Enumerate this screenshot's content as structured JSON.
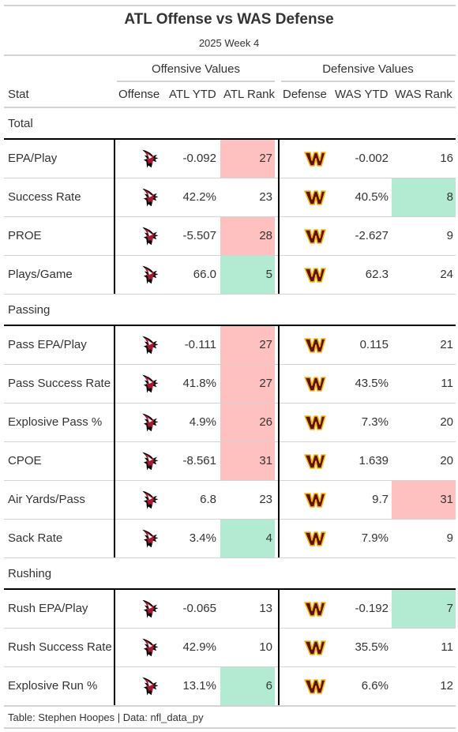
{
  "title": "ATL Offense vs WAS Defense",
  "subtitle": "2025 Week 4",
  "spanners": {
    "offense": "Offensive Values",
    "defense": "Defensive Values"
  },
  "columns": {
    "stat": "Stat",
    "offense": "Offense",
    "atl_ytd": "ATL YTD",
    "atl_rank": "ATL Rank",
    "defense": "Defense",
    "was_ytd": "WAS YTD",
    "was_rank": "WAS Rank"
  },
  "colors": {
    "bad": "#ffc0c0",
    "good": "#b2ebd2",
    "falcons_red": "#a71930",
    "commanders_burgundy": "#5a1414",
    "commanders_gold": "#ffb612"
  },
  "icons": {
    "offense": "falcons-logo-icon",
    "defense": "commanders-logo-icon"
  },
  "groups": [
    {
      "label": "Total",
      "rows": [
        {
          "stat": "EPA/Play",
          "atl_ytd": "-0.092",
          "atl_rank": "27",
          "atl_rank_shade": "bad",
          "was_ytd": "-0.002",
          "was_rank": "16",
          "was_rank_shade": ""
        },
        {
          "stat": "Success Rate",
          "atl_ytd": "42.2%",
          "atl_rank": "23",
          "atl_rank_shade": "",
          "was_ytd": "40.5%",
          "was_rank": "8",
          "was_rank_shade": "good"
        },
        {
          "stat": "PROE",
          "atl_ytd": "-5.507",
          "atl_rank": "28",
          "atl_rank_shade": "bad",
          "was_ytd": "-2.627",
          "was_rank": "9",
          "was_rank_shade": ""
        },
        {
          "stat": "Plays/Game",
          "atl_ytd": "66.0",
          "atl_rank": "5",
          "atl_rank_shade": "good",
          "was_ytd": "62.3",
          "was_rank": "24",
          "was_rank_shade": ""
        }
      ]
    },
    {
      "label": "Passing",
      "rows": [
        {
          "stat": "Pass EPA/Play",
          "atl_ytd": "-0.111",
          "atl_rank": "27",
          "atl_rank_shade": "bad",
          "was_ytd": "0.115",
          "was_rank": "21",
          "was_rank_shade": ""
        },
        {
          "stat": "Pass Success Rate",
          "atl_ytd": "41.8%",
          "atl_rank": "27",
          "atl_rank_shade": "bad",
          "was_ytd": "43.5%",
          "was_rank": "11",
          "was_rank_shade": ""
        },
        {
          "stat": "Explosive Pass %",
          "atl_ytd": "4.9%",
          "atl_rank": "26",
          "atl_rank_shade": "bad",
          "was_ytd": "7.3%",
          "was_rank": "20",
          "was_rank_shade": ""
        },
        {
          "stat": "CPOE",
          "atl_ytd": "-8.561",
          "atl_rank": "31",
          "atl_rank_shade": "bad",
          "was_ytd": "1.639",
          "was_rank": "20",
          "was_rank_shade": ""
        },
        {
          "stat": "Air Yards/Pass",
          "atl_ytd": "6.8",
          "atl_rank": "23",
          "atl_rank_shade": "",
          "was_ytd": "9.7",
          "was_rank": "31",
          "was_rank_shade": "bad"
        },
        {
          "stat": "Sack Rate",
          "atl_ytd": "3.4%",
          "atl_rank": "4",
          "atl_rank_shade": "good",
          "was_ytd": "7.9%",
          "was_rank": "9",
          "was_rank_shade": ""
        }
      ]
    },
    {
      "label": "Rushing",
      "rows": [
        {
          "stat": "Rush EPA/Play",
          "atl_ytd": "-0.065",
          "atl_rank": "13",
          "atl_rank_shade": "",
          "was_ytd": "-0.192",
          "was_rank": "7",
          "was_rank_shade": "good"
        },
        {
          "stat": "Rush Success Rate",
          "atl_ytd": "42.9%",
          "atl_rank": "10",
          "atl_rank_shade": "",
          "was_ytd": "35.5%",
          "was_rank": "11",
          "was_rank_shade": ""
        },
        {
          "stat": "Explosive Run %",
          "atl_ytd": "13.1%",
          "atl_rank": "6",
          "atl_rank_shade": "good",
          "was_ytd": "6.6%",
          "was_rank": "12",
          "was_rank_shade": ""
        }
      ]
    }
  ],
  "source_note": "Table: Stephen Hoopes | Data: nfl_data_py"
}
